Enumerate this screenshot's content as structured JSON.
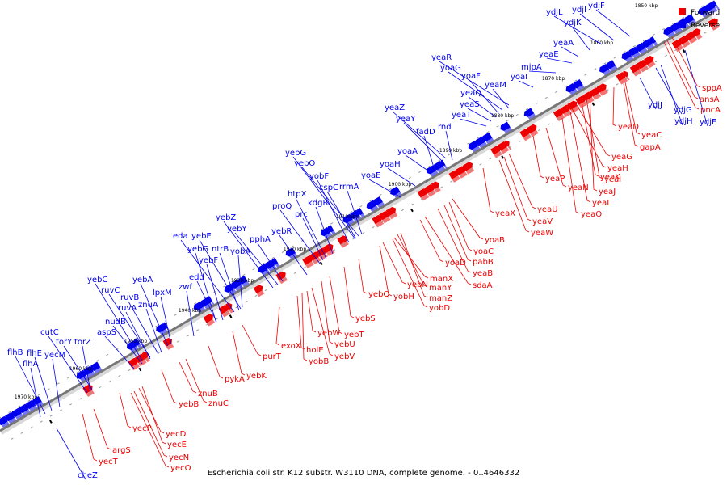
{
  "title": "Escherichia coli str. K12 substr. W3110 DNA, complete genome. - 0..4646332",
  "legend": [
    {
      "label": "Forward",
      "color": "#ee0000"
    },
    {
      "label": "Reverse",
      "color": "#0000ee"
    }
  ],
  "colors": {
    "forward": "#ee0000",
    "reverse": "#0000ee",
    "backbone": "#777777"
  },
  "ticks": [
    "1850 kbp",
    "1860 kbp",
    "1870 kbp",
    "1880 kbp",
    "1890 kbp",
    "1900 kbp",
    "1910 kbp",
    "1920 kbp",
    "1930 kbp",
    "1940 kbp",
    "1950 kbp",
    "1960 kbp",
    "1970 kbp"
  ],
  "reverse_genes": [
    "ydjF",
    "ydjI",
    "ydjL",
    "ydjK",
    "yeaA",
    "yeaE",
    "mipA",
    "yoaI",
    "yeaR",
    "yoaG",
    "yoaF",
    "yeaM",
    "yeaQ",
    "yeaS",
    "yeaT",
    "yeaZ",
    "yeaY",
    "fadD",
    "rnd",
    "yoaA",
    "yoaH",
    "yoaE",
    "yebG",
    "yebO",
    "yobF",
    "cspC",
    "rrmA",
    "htpX",
    "kdgR",
    "proQ",
    "prc",
    "yebR",
    "yebZ",
    "yebY",
    "pphA",
    "eda",
    "yebE",
    "yebG",
    "ntrB",
    "yebF",
    "yobA",
    "edd",
    "zwf",
    "yebC",
    "yebA",
    "ruvC",
    "lpxM",
    "ruvB",
    "znuA",
    "ruvA",
    "nudB",
    "aspS",
    "cutC",
    "torY",
    "torZ",
    "flhB",
    "flhE",
    "yecM",
    "flhA",
    "cheZ",
    "ydjJ",
    "ydjG",
    "ydjH",
    "ydjE"
  ],
  "forward_genes": [
    "sppA",
    "ansA",
    "pncA",
    "yeaD",
    "yeaC",
    "gapA",
    "yeaG",
    "yeaH",
    "yeaK",
    "yeaI",
    "yeaJ",
    "yeaP",
    "yeaN",
    "yeaL",
    "yeaO",
    "yeaU",
    "yeaV",
    "yeaW",
    "yeaX",
    "yoaB",
    "yoaC",
    "pabB",
    "yoaD",
    "yeaB",
    "sdaA",
    "manX",
    "yebN",
    "manY",
    "manZ",
    "yobH",
    "yobD",
    "yebQ",
    "yebS",
    "yebT",
    "yebW",
    "yebU",
    "exoX",
    "holE",
    "yebV",
    "yobB",
    "purT",
    "yebK",
    "pykA",
    "znuB",
    "znuC",
    "yebB",
    "yecD",
    "yecP",
    "yecE",
    "argS",
    "yecN",
    "yecT",
    "yecO"
  ]
}
